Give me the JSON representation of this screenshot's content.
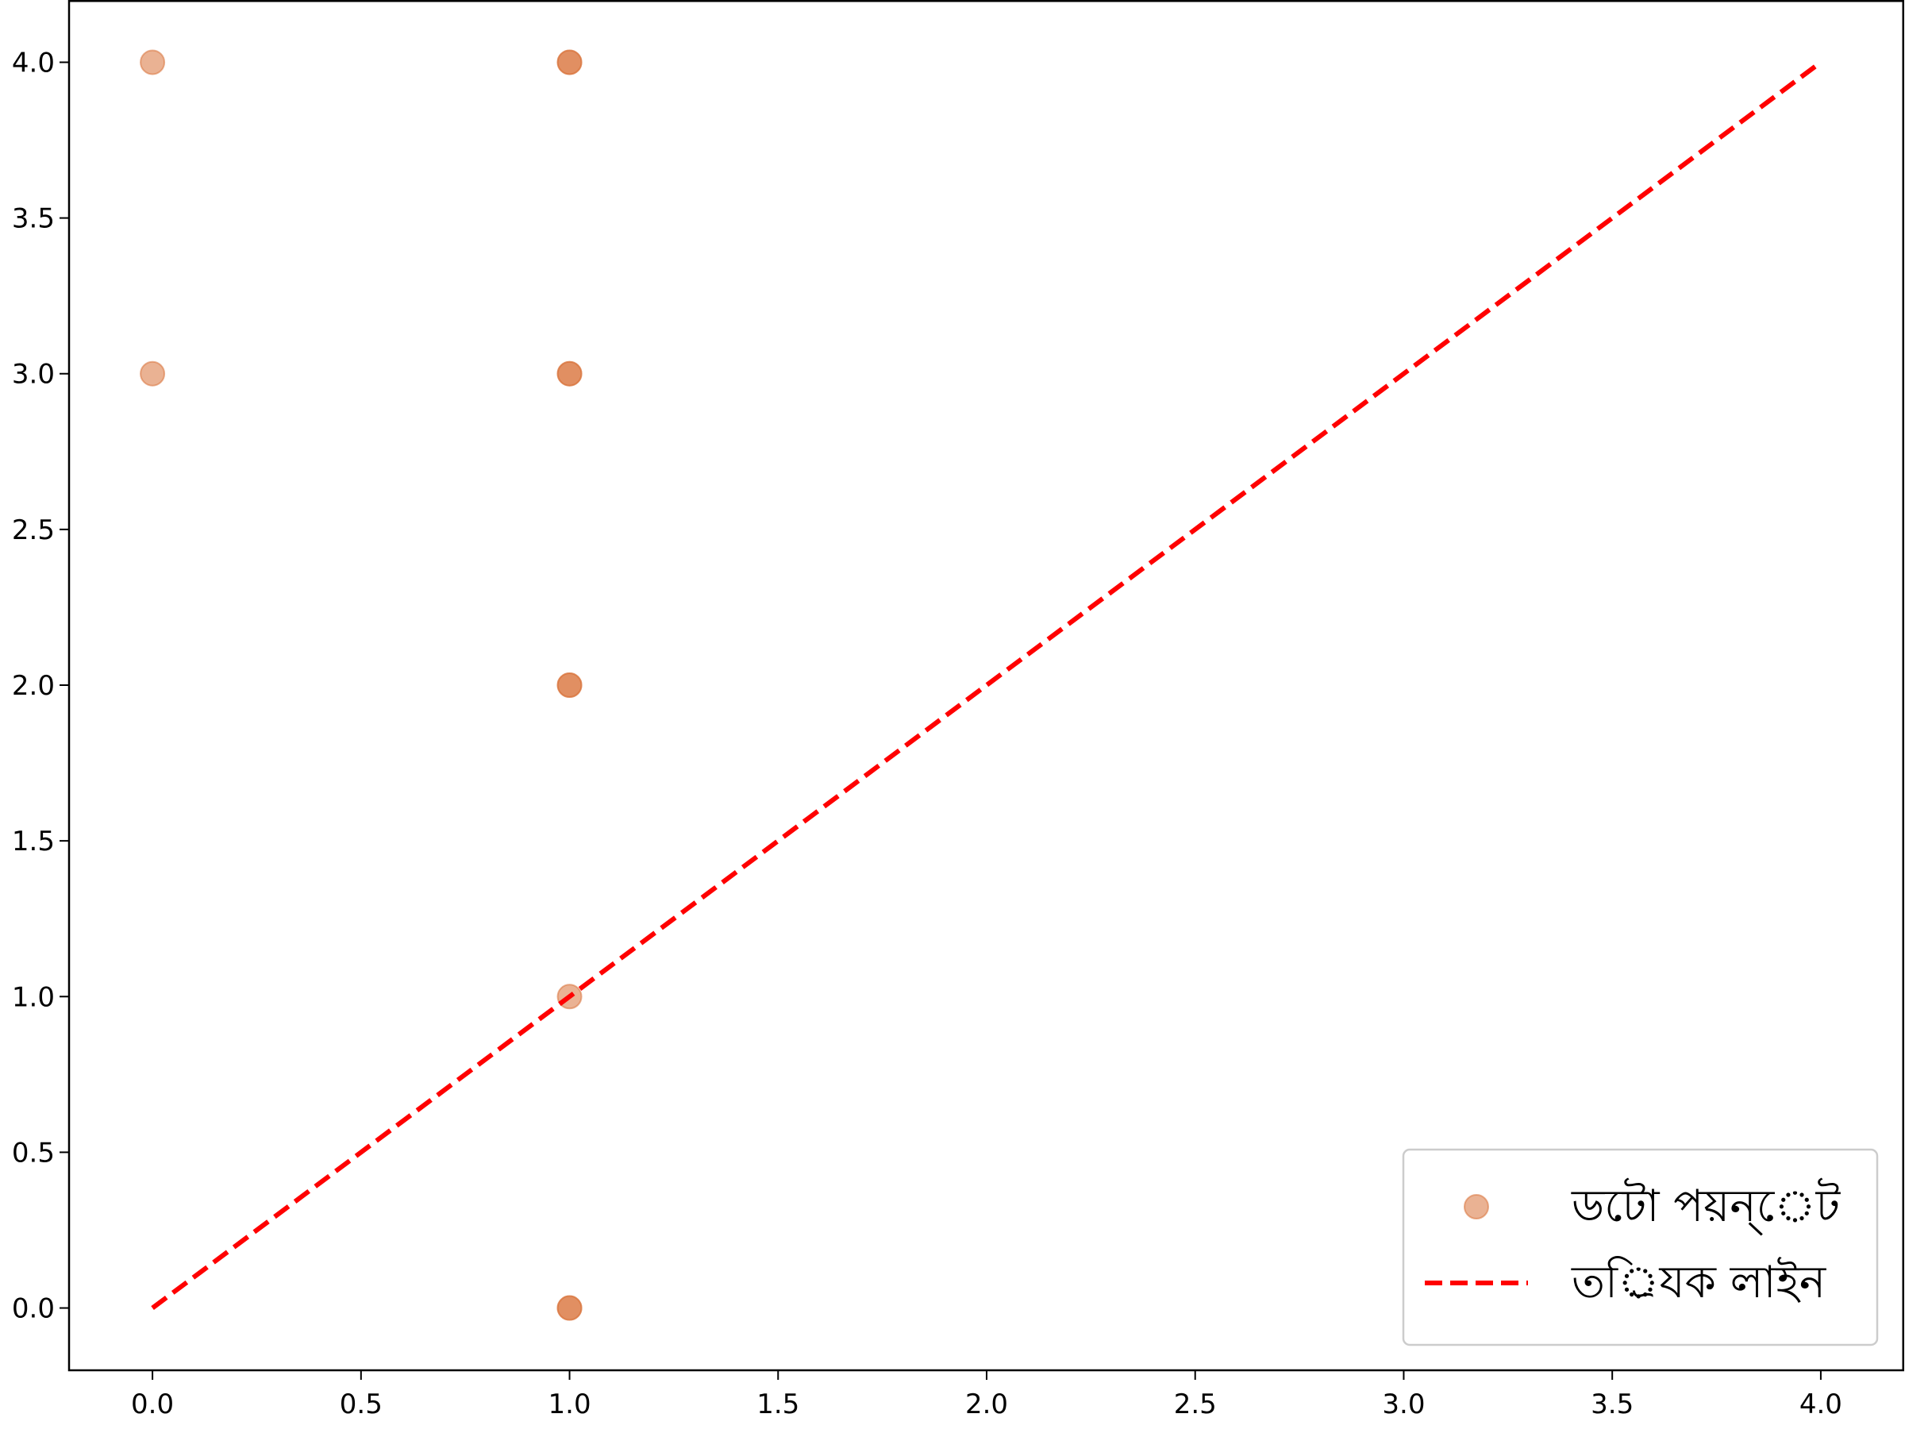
{
  "chart_data": {
    "type": "scatter",
    "title": "",
    "xlabel": "",
    "ylabel": "",
    "xlim": [
      -0.2,
      4.2
    ],
    "ylim": [
      -0.2,
      4.2
    ],
    "x_ticks": [
      0.0,
      0.5,
      1.0,
      1.5,
      2.0,
      2.5,
      3.0,
      3.5,
      4.0
    ],
    "y_ticks": [
      0.0,
      0.5,
      1.0,
      1.5,
      2.0,
      2.5,
      3.0,
      3.5,
      4.0
    ],
    "x_tick_labels": [
      "0.0",
      "0.5",
      "1.0",
      "1.5",
      "2.0",
      "2.5",
      "3.0",
      "3.5",
      "4.0"
    ],
    "y_tick_labels": [
      "0.0",
      "0.5",
      "1.0",
      "1.5",
      "2.0",
      "2.5",
      "3.0",
      "3.5",
      "4.0"
    ],
    "grid": false,
    "legend_position": "bottom-right",
    "series": [
      {
        "name": "ডটো পয়ন্েট",
        "kind": "scatter",
        "color": "#d9733a",
        "opacity": 0.55,
        "points": [
          {
            "x": 0,
            "y": 4
          },
          {
            "x": 0,
            "y": 3
          },
          {
            "x": 1,
            "y": 4
          },
          {
            "x": 1,
            "y": 4
          },
          {
            "x": 1,
            "y": 3
          },
          {
            "x": 1,
            "y": 3
          },
          {
            "x": 1,
            "y": 2
          },
          {
            "x": 1,
            "y": 2
          },
          {
            "x": 1,
            "y": 1
          },
          {
            "x": 1,
            "y": 0
          },
          {
            "x": 1,
            "y": 0
          }
        ]
      },
      {
        "name": "তর্িযক লাইন",
        "kind": "line",
        "style": "dashed",
        "color": "#ff0000",
        "points": [
          {
            "x": 0,
            "y": 0
          },
          {
            "x": 4,
            "y": 4
          }
        ]
      }
    ]
  }
}
